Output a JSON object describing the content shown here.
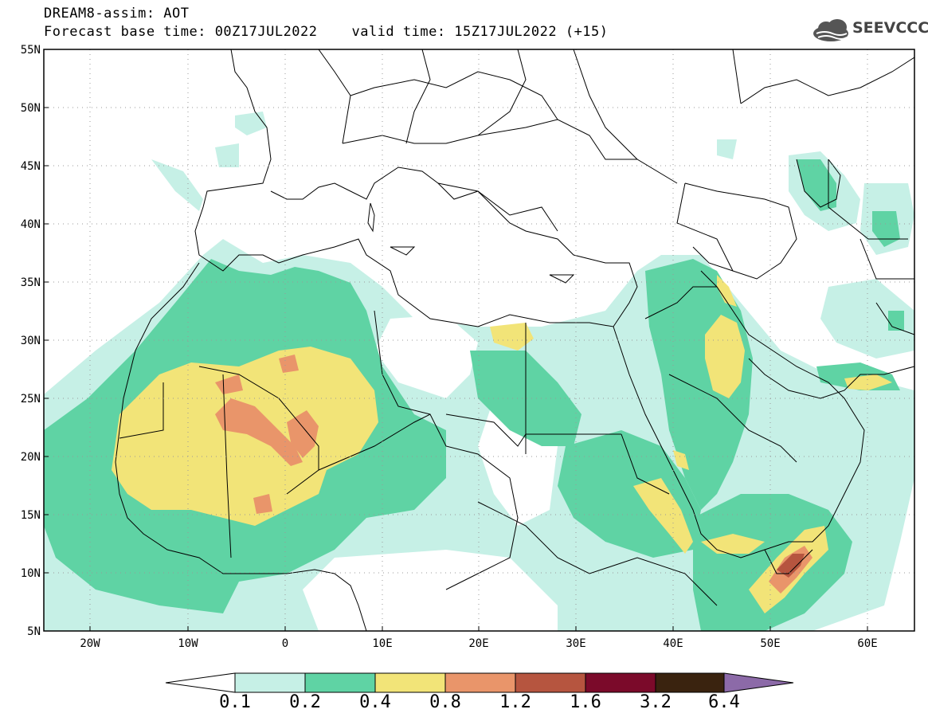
{
  "title": {
    "line1": "DREAM8-assim: AOT",
    "base_time": "Forecast base time: 00Z17JUL2022",
    "valid_time": "valid time: 15Z17JUL2022 (+15)"
  },
  "logo": {
    "text": "SEEVCCC",
    "icon": "cloud-logo-icon"
  },
  "map": {
    "lon_range": [
      -25,
      65
    ],
    "lat_range": [
      5,
      55
    ],
    "lat_ticks": [
      "55N",
      "50N",
      "45N",
      "40N",
      "35N",
      "30N",
      "25N",
      "20N",
      "15N",
      "10N",
      "5N"
    ],
    "lon_ticks": [
      "20W",
      "10W",
      "0",
      "10E",
      "20E",
      "30E",
      "40E",
      "50E",
      "60E"
    ]
  },
  "colorbar": {
    "levels": [
      "0.1",
      "0.2",
      "0.4",
      "0.8",
      "1.2",
      "1.6",
      "3.2",
      "6.4"
    ],
    "colors": {
      "c01": "#c6f0e6",
      "c02": "#5fd3a4",
      "c04": "#f2e478",
      "c08": "#e9956a",
      "c12": "#b6553f",
      "c16": "#961b1b",
      "c32": "#7b0a2a",
      "c64": "#3a230f",
      "over": "#8c6aa8"
    }
  }
}
